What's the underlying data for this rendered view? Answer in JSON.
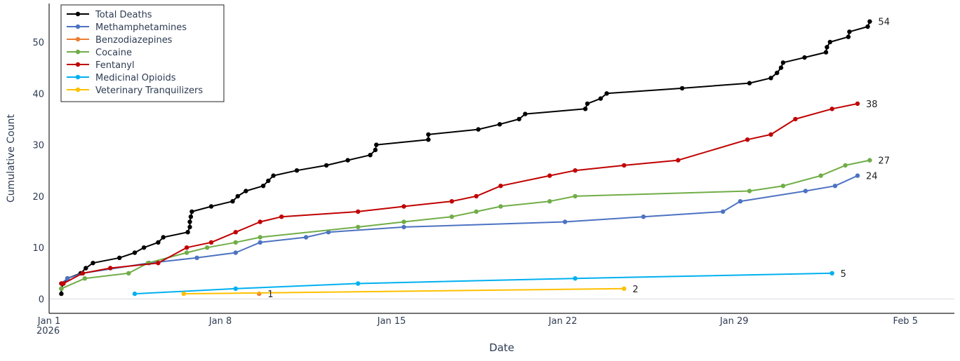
{
  "chart_data": {
    "type": "line",
    "xlabel": "Date",
    "ylabel": "Cumulative Count",
    "x_ticks": [
      {
        "date": "2026-01-01",
        "label": "Jan 1",
        "sublabel": "2026"
      },
      {
        "date": "2026-01-08",
        "label": "Jan 8",
        "sublabel": ""
      },
      {
        "date": "2026-01-15",
        "label": "Jan 15",
        "sublabel": ""
      },
      {
        "date": "2026-01-22",
        "label": "Jan 22",
        "sublabel": ""
      },
      {
        "date": "2026-01-29",
        "label": "Jan 29",
        "sublabel": ""
      },
      {
        "date": "2026-02-05",
        "label": "Feb 5",
        "sublabel": ""
      }
    ],
    "y_ticks": [
      0,
      10,
      20,
      30,
      40,
      50
    ],
    "xlim": [
      "2026-01-01",
      "2026-02-07"
    ],
    "ylim": [
      -2.8,
      57.5
    ],
    "grid": "horizontal zero line only",
    "legend_position": "top-left",
    "series": [
      {
        "name": "Total Deaths",
        "color": "#000000",
        "end_label": "54",
        "points": [
          [
            "2026-01-01T12:00",
            1
          ],
          [
            "2026-01-01T12:00",
            2
          ],
          [
            "2026-01-01T14:00",
            3
          ],
          [
            "2026-01-01T18:00",
            4
          ],
          [
            "2026-01-02T07:00",
            5
          ],
          [
            "2026-01-02T12:00",
            6
          ],
          [
            "2026-01-02T19:00",
            7
          ],
          [
            "2026-01-03T21:00",
            8
          ],
          [
            "2026-01-04T12:00",
            9
          ],
          [
            "2026-01-04T21:00",
            10
          ],
          [
            "2026-01-05T11:00",
            11
          ],
          [
            "2026-01-05T16:00",
            12
          ],
          [
            "2026-01-06T16:00",
            13
          ],
          [
            "2026-01-06T18:00",
            14
          ],
          [
            "2026-01-06T18:00",
            15
          ],
          [
            "2026-01-06T19:00",
            16
          ],
          [
            "2026-01-06T20:00",
            17
          ],
          [
            "2026-01-07T15:00",
            18
          ],
          [
            "2026-01-08T12:00",
            19
          ],
          [
            "2026-01-08T17:00",
            20
          ],
          [
            "2026-01-09T01:00",
            21
          ],
          [
            "2026-01-09T18:00",
            22
          ],
          [
            "2026-01-09T23:00",
            23
          ],
          [
            "2026-01-10T04:00",
            24
          ],
          [
            "2026-01-11T03:00",
            25
          ],
          [
            "2026-01-12T08:00",
            26
          ],
          [
            "2026-01-13T05:00",
            27
          ],
          [
            "2026-01-14T03:00",
            28
          ],
          [
            "2026-01-14T08:00",
            29
          ],
          [
            "2026-01-14T09:00",
            30
          ],
          [
            "2026-01-16T12:00",
            31
          ],
          [
            "2026-01-16T12:00",
            32
          ],
          [
            "2026-01-18T13:00",
            33
          ],
          [
            "2026-01-19T10:00",
            34
          ],
          [
            "2026-01-20T05:00",
            35
          ],
          [
            "2026-01-20T11:00",
            36
          ],
          [
            "2026-01-22T22:00",
            37
          ],
          [
            "2026-01-23T00:00",
            38
          ],
          [
            "2026-01-23T13:00",
            39
          ],
          [
            "2026-01-23T19:00",
            40
          ],
          [
            "2026-01-26T21:00",
            41
          ],
          [
            "2026-01-29T15:00",
            42
          ],
          [
            "2026-01-30T12:00",
            43
          ],
          [
            "2026-01-30T18:00",
            44
          ],
          [
            "2026-01-30T22:00",
            45
          ],
          [
            "2026-01-31T00:00",
            46
          ],
          [
            "2026-01-31T21:00",
            47
          ],
          [
            "2026-02-01T18:00",
            48
          ],
          [
            "2026-02-01T19:00",
            49
          ],
          [
            "2026-02-01T22:00",
            50
          ],
          [
            "2026-02-02T16:00",
            51
          ],
          [
            "2026-02-02T17:00",
            52
          ],
          [
            "2026-02-03T11:00",
            53
          ],
          [
            "2026-02-03T13:00",
            54
          ]
        ]
      },
      {
        "name": "Methamphetamines",
        "color": "#4c72c2",
        "end_label": "24",
        "points": [
          [
            "2026-01-01T12:00",
            3
          ],
          [
            "2026-01-01T18:00",
            4
          ],
          [
            "2026-01-02T09:00",
            5
          ],
          [
            "2026-01-05T02:00",
            7
          ],
          [
            "2026-01-07T01:00",
            8
          ],
          [
            "2026-01-08T15:00",
            9
          ],
          [
            "2026-01-09T15:00",
            11
          ],
          [
            "2026-01-11T12:00",
            12
          ],
          [
            "2026-01-12T10:00",
            13
          ],
          [
            "2026-01-15T12:00",
            14
          ],
          [
            "2026-01-22T02:00",
            15
          ],
          [
            "2026-01-25T07:00",
            16
          ],
          [
            "2026-01-28T13:00",
            17
          ],
          [
            "2026-01-29T06:00",
            19
          ],
          [
            "2026-01-31T22:00",
            21
          ],
          [
            "2026-02-02T03:00",
            22
          ],
          [
            "2026-02-03T01:00",
            24
          ]
        ]
      },
      {
        "name": "Benzodiazepines",
        "color": "#ed7d31",
        "end_label": "1",
        "points": [
          [
            "2026-01-09T14:00",
            1
          ]
        ]
      },
      {
        "name": "Cocaine",
        "color": "#70ad47",
        "end_label": "27",
        "points": [
          [
            "2026-01-01T12:00",
            2
          ],
          [
            "2026-01-02T11:00",
            4
          ],
          [
            "2026-01-04T06:00",
            5
          ],
          [
            "2026-01-05T01:00",
            7
          ],
          [
            "2026-01-06T15:00",
            9
          ],
          [
            "2026-01-07T11:00",
            10
          ],
          [
            "2026-01-08T15:00",
            11
          ],
          [
            "2026-01-09T15:00",
            12
          ],
          [
            "2026-01-13T15:00",
            14
          ],
          [
            "2026-01-15T12:00",
            15
          ],
          [
            "2026-01-17T11:00",
            16
          ],
          [
            "2026-01-18T11:00",
            17
          ],
          [
            "2026-01-19T11:00",
            18
          ],
          [
            "2026-01-21T11:00",
            19
          ],
          [
            "2026-01-22T12:00",
            20
          ],
          [
            "2026-01-29T15:00",
            21
          ],
          [
            "2026-01-31T00:00",
            22
          ],
          [
            "2026-02-01T13:00",
            24
          ],
          [
            "2026-02-02T13:00",
            26
          ],
          [
            "2026-02-03T13:00",
            27
          ]
        ]
      },
      {
        "name": "Fentanyl",
        "color": "#c00000",
        "end_label": "38",
        "points": [
          [
            "2026-01-01T12:00",
            3
          ],
          [
            "2026-01-01T14:00",
            3
          ],
          [
            "2026-01-02T09:00",
            5
          ],
          [
            "2026-01-03T12:00",
            6
          ],
          [
            "2026-01-05T11:00",
            7
          ],
          [
            "2026-01-06T15:00",
            10
          ],
          [
            "2026-01-07T15:00",
            11
          ],
          [
            "2026-01-08T15:00",
            13
          ],
          [
            "2026-01-09T15:00",
            15
          ],
          [
            "2026-01-10T12:00",
            16
          ],
          [
            "2026-01-13T15:00",
            17
          ],
          [
            "2026-01-15T12:00",
            18
          ],
          [
            "2026-01-17T11:00",
            19
          ],
          [
            "2026-01-18T11:00",
            20
          ],
          [
            "2026-01-19T11:00",
            22
          ],
          [
            "2026-01-21T11:00",
            24
          ],
          [
            "2026-01-22T12:00",
            25
          ],
          [
            "2026-01-24T12:00",
            26
          ],
          [
            "2026-01-26T17:00",
            27
          ],
          [
            "2026-01-29T13:00",
            31
          ],
          [
            "2026-01-30T12:00",
            32
          ],
          [
            "2026-01-31T12:00",
            35
          ],
          [
            "2026-02-02T00:00",
            37
          ],
          [
            "2026-02-03T01:00",
            38
          ]
        ]
      },
      {
        "name": "Medicinal Opioids",
        "color": "#00b0f0",
        "end_label": "5",
        "points": [
          [
            "2026-01-04T12:00",
            1
          ],
          [
            "2026-01-08T15:00",
            2
          ],
          [
            "2026-01-13T15:00",
            3
          ],
          [
            "2026-01-22T12:00",
            4
          ],
          [
            "2026-02-02T00:00",
            5
          ]
        ]
      },
      {
        "name": "Veterinary Tranquilizers",
        "color": "#ffc000",
        "end_label": "2",
        "points": [
          [
            "2026-01-06T12:00",
            1
          ],
          [
            "2026-01-24T12:00",
            2
          ]
        ]
      }
    ]
  }
}
